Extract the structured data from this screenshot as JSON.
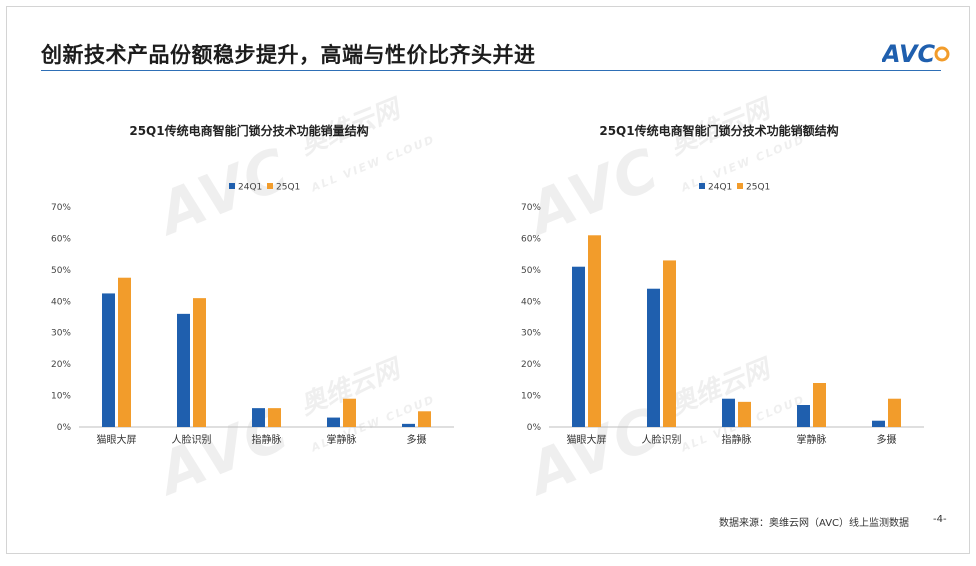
{
  "header": {
    "title": "创新技术产品份额稳步提升，高端与性价比齐头并进",
    "logo_text": "AVC"
  },
  "footer": {
    "source": "数据来源：奥维云网（AVC）线上监测数据",
    "page": "-4-"
  },
  "watermark": {
    "brand": "AVC",
    "cn": "奥维云网",
    "en": "ALL VIEW CLOUD"
  },
  "colors": {
    "series_24q1": "#1f5fae",
    "series_25q1": "#f29c2b",
    "accent": "#2e6fb6"
  },
  "chart_data": [
    {
      "type": "bar",
      "title": "25Q1传统电商智能门锁分技术功能销量结构",
      "categories": [
        "猫眼大屏",
        "人脸识别",
        "指静脉",
        "掌静脉",
        "多摄"
      ],
      "series": [
        {
          "name": "24Q1",
          "values": [
            42.5,
            36,
            6,
            3,
            1
          ],
          "color": "#1f5fae"
        },
        {
          "name": "25Q1",
          "values": [
            47.5,
            41,
            6,
            9,
            5
          ],
          "color": "#f29c2b"
        }
      ],
      "yticks": [
        "0%",
        "10%",
        "20%",
        "30%",
        "40%",
        "50%",
        "60%",
        "70%"
      ],
      "ylim": [
        0,
        70
      ],
      "legend": "top",
      "grid": false
    },
    {
      "type": "bar",
      "title": "25Q1传统电商智能门锁分技术功能销额结构",
      "categories": [
        "猫眼大屏",
        "人脸识别",
        "指静脉",
        "掌静脉",
        "多摄"
      ],
      "series": [
        {
          "name": "24Q1",
          "values": [
            51,
            44,
            9,
            7,
            2
          ],
          "color": "#1f5fae"
        },
        {
          "name": "25Q1",
          "values": [
            61,
            53,
            8,
            14,
            9
          ],
          "color": "#f29c2b"
        }
      ],
      "yticks": [
        "0%",
        "10%",
        "20%",
        "30%",
        "40%",
        "50%",
        "60%",
        "70%"
      ],
      "ylim": [
        0,
        70
      ],
      "legend": "top",
      "grid": false
    }
  ]
}
